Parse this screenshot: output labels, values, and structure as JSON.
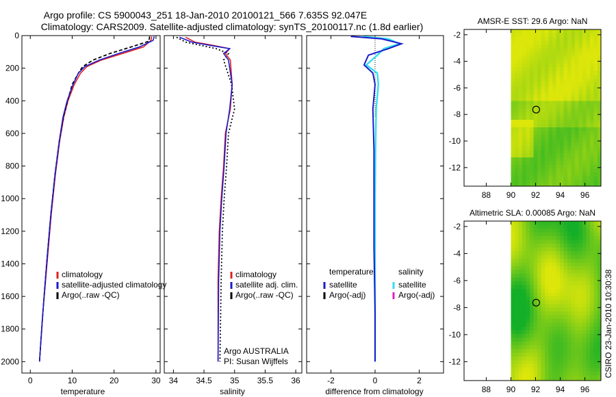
{
  "title_line1": "Argo profile: CS 5900043_251 18-Jan-2010 20100121_566 7.635S 92.047E",
  "title_line2": "Climatology: CARS2009. Satellite-adjusted climatology: synTS_20100117.nc (1.8d earlier)",
  "footer_text": "CSIRO 23-Jan-2010 10:30:38",
  "colors": {
    "climatology": "#e02020",
    "satellite": "#1a1acc",
    "argo": "#000000",
    "satellite_diff": "#33ddee",
    "argo_adj_sal": "#e020c0"
  },
  "chart_data": [
    {
      "type": "line",
      "id": "temperature",
      "xlabel": "temperature",
      "ylabel": "",
      "xlim": [
        -2,
        31
      ],
      "ylim": [
        2070,
        0
      ],
      "xticks": [
        0,
        10,
        20,
        30
      ],
      "yticks": [
        0,
        200,
        400,
        600,
        800,
        1000,
        1200,
        1400,
        1600,
        1800,
        2000
      ],
      "legend": [
        "climatology",
        "satellite-adjusted climatology",
        "Argo(..raw -QC)"
      ],
      "series": [
        {
          "name": "climatology",
          "x": [
            29.0,
            28.8,
            27.0,
            22.0,
            17.0,
            13.5,
            12.0,
            10.5,
            9.0,
            8.0,
            7.0,
            6.0,
            5.0,
            4.0,
            3.0,
            2.2
          ],
          "y": [
            5,
            30,
            70,
            110,
            150,
            190,
            230,
            300,
            400,
            500,
            650,
            850,
            1100,
            1400,
            1700,
            2000
          ]
        },
        {
          "name": "satellite-adjusted climatology",
          "x": [
            29.6,
            29.3,
            26.0,
            21.0,
            16.5,
            13.0,
            11.5,
            10.2,
            8.8,
            7.8,
            6.9,
            5.9,
            4.9,
            3.9,
            3.0,
            2.2
          ],
          "y": [
            5,
            30,
            70,
            110,
            150,
            190,
            230,
            300,
            400,
            500,
            650,
            850,
            1100,
            1400,
            1700,
            2000
          ]
        },
        {
          "name": "Argo(..raw -QC)",
          "x": [
            28.5,
            28.3,
            24.0,
            19.0,
            15.0,
            12.5,
            11.5,
            10.0,
            8.9,
            7.9,
            6.9,
            5.9,
            4.9,
            3.9,
            3.0,
            2.2
          ],
          "y": [
            5,
            35,
            70,
            110,
            150,
            190,
            230,
            300,
            400,
            500,
            650,
            850,
            1100,
            1400,
            1700,
            2000
          ]
        }
      ]
    },
    {
      "type": "line",
      "id": "salinity",
      "xlabel": "salinity",
      "xlim": [
        33.85,
        36.1
      ],
      "ylim": [
        2070,
        0
      ],
      "xticks": [
        34,
        34.5,
        35,
        35.5,
        36
      ],
      "legend": [
        "climatology",
        "satellite adj. clim.",
        "Argo(..raw -QC)"
      ],
      "annotation_line1": "Argo AUSTRALIA",
      "annotation_line2": "PI: Susan Wijffels",
      "series": [
        {
          "name": "climatology",
          "x": [
            34.2,
            34.35,
            34.65,
            34.92,
            34.85,
            34.93,
            34.96,
            34.93,
            34.85,
            34.82,
            34.78,
            34.75,
            34.73,
            34.73
          ],
          "y": [
            10,
            40,
            60,
            80,
            110,
            150,
            300,
            450,
            600,
            800,
            1000,
            1200,
            1500,
            2000
          ]
        },
        {
          "name": "satellite adj. clim.",
          "x": [
            34.1,
            34.3,
            34.6,
            34.92,
            34.82,
            34.9,
            34.96,
            34.92,
            34.86,
            34.83,
            34.79,
            34.76,
            34.74,
            34.73
          ],
          "y": [
            10,
            40,
            60,
            80,
            110,
            150,
            300,
            450,
            600,
            800,
            1000,
            1200,
            1500,
            2000
          ]
        },
        {
          "name": "Argo(..raw -QC)",
          "x": [
            34.05,
            34.2,
            34.45,
            34.7,
            34.9,
            34.82,
            34.95,
            35.0,
            34.9,
            34.87,
            34.83,
            34.8,
            34.78,
            34.76
          ],
          "y": [
            10,
            40,
            60,
            80,
            110,
            150,
            300,
            450,
            600,
            800,
            1000,
            1200,
            1500,
            2000
          ]
        }
      ]
    },
    {
      "type": "line",
      "id": "difference",
      "xlabel": "difference from climatology",
      "xlim": [
        -3.1,
        3.1
      ],
      "ylim": [
        2070,
        0
      ],
      "xticks": [
        -2,
        0,
        2
      ],
      "legend_left_title": "temperature",
      "legend_right_title": "salinity",
      "legend_left": [
        "satellite",
        "Argo(-adj)"
      ],
      "legend_right": [
        "satellite",
        "Argo(-adj)"
      ],
      "series": [
        {
          "name": "temperature satellite",
          "x": [
            -1.1,
            0.3,
            1.2,
            0.6,
            -0.3,
            -0.5,
            -0.1,
            0.0,
            -0.1,
            -0.05,
            -0.05,
            -0.05,
            0.0,
            0.0
          ],
          "y": [
            5,
            20,
            50,
            80,
            120,
            180,
            230,
            300,
            450,
            700,
            1000,
            1300,
            1700,
            2000
          ]
        },
        {
          "name": "salinity satellite",
          "x": [
            -0.6,
            0.6,
            1.1,
            0.4,
            0.1,
            -0.4,
            0.1,
            0.15,
            0.05,
            0.02,
            0.0,
            0.0,
            0.0,
            0.0
          ],
          "y": [
            5,
            20,
            50,
            80,
            120,
            180,
            230,
            300,
            450,
            700,
            1000,
            1300,
            1700,
            2000
          ]
        }
      ]
    },
    {
      "type": "heatmap",
      "id": "sst_map",
      "title": "AMSR-E SST: 29.6 Argo: NaN",
      "xlim": [
        86.2,
        97.3
      ],
      "ylim": [
        -13.4,
        -1.6
      ],
      "xticks": [
        88,
        90,
        92,
        94,
        96
      ],
      "yticks": [
        -2,
        -4,
        -6,
        -8,
        -10,
        -12
      ],
      "data_x_range": [
        90,
        97.3
      ],
      "argo_position": {
        "lon": 92.047,
        "lat": -7.635
      }
    },
    {
      "type": "heatmap",
      "id": "sla_map",
      "title": "Altimetric SLA: 0.00085 Argo: NaN",
      "xlim": [
        86.2,
        97.3
      ],
      "ylim": [
        -13.4,
        -1.6
      ],
      "xticks": [
        88,
        90,
        92,
        94,
        96
      ],
      "yticks": [
        -2,
        -4,
        -6,
        -8,
        -10,
        -12
      ],
      "data_x_range": [
        90,
        97.3
      ],
      "argo_position": {
        "lon": 92.047,
        "lat": -7.635
      }
    }
  ]
}
